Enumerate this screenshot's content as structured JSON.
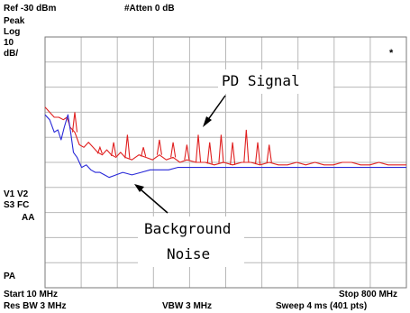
{
  "analyzer": {
    "ref_level": "Ref -30 dBm",
    "atten": "#Atten 0 dB",
    "detector": "Peak",
    "scale_type": "Log",
    "scale_value": "10",
    "scale_unit": "dB/",
    "marker_glyph": "*",
    "left_labels": [
      "V1  V2",
      "S3  FC",
      "AA",
      "PA"
    ],
    "start": "Start 10 MHz",
    "stop": "Stop 800 MHz",
    "res_bw": "Res BW 3 MHz",
    "vbw": "VBW 3 MHz",
    "sweep": "Sweep 4 ms (401 pts)"
  },
  "annotations": {
    "signal_label": "PD Signal",
    "noise_label_line1": "Background",
    "noise_label_line2": "Noise"
  },
  "colors": {
    "pd_signal": "#e02020",
    "background_noise": "#2828d8",
    "grid": "#b8b8b8"
  },
  "chart_data": {
    "type": "line",
    "xlim": [
      10,
      800
    ],
    "ylim": [
      -130,
      -30
    ],
    "ylim_note_unit": "dBm",
    "series": [
      {
        "key": "pd_signal",
        "x": [
          10,
          20,
          30,
          40,
          50,
          58,
          65,
          75,
          85,
          95,
          105,
          115,
          125,
          135,
          145,
          155,
          165,
          175,
          185,
          200,
          215,
          230,
          245,
          260,
          275,
          290,
          305,
          320,
          340,
          360,
          380,
          400,
          420,
          440,
          460,
          480,
          500,
          520,
          540,
          560,
          580,
          600,
          620,
          640,
          660,
          680,
          700,
          720,
          740,
          760,
          780,
          800
        ],
        "y": [
          -58,
          -60,
          -62,
          -62,
          -63,
          -62,
          -66,
          -68,
          -73,
          -74,
          -72,
          -74,
          -76,
          -77,
          -75,
          -77,
          -78,
          -76,
          -78,
          -79,
          -77,
          -78,
          -79,
          -77,
          -79,
          -78,
          -80,
          -79,
          -80,
          -80,
          -81,
          -80,
          -81,
          -80,
          -80,
          -81,
          -80,
          -81,
          -81,
          -80,
          -81,
          -80,
          -81,
          -81,
          -80,
          -80,
          -81,
          -81,
          -80,
          -81,
          -81,
          -81
        ]
      },
      {
        "key": "background_noise",
        "x": [
          10,
          20,
          30,
          38,
          45,
          52,
          60,
          66,
          72,
          80,
          90,
          100,
          110,
          120,
          130,
          140,
          150,
          165,
          180,
          200,
          220,
          240,
          260,
          280,
          300,
          340,
          380,
          420,
          460,
          500,
          540,
          580,
          620,
          660,
          700,
          740,
          780,
          800
        ],
        "y": [
          -61,
          -63,
          -68,
          -67,
          -71,
          -66,
          -61,
          -68,
          -76,
          -78,
          -82,
          -81,
          -83,
          -84,
          -84,
          -85,
          -86,
          -85,
          -84,
          -85,
          -84,
          -83,
          -83,
          -83,
          -82,
          -82,
          -82,
          -82,
          -82,
          -82,
          -82,
          -82,
          -82,
          -82,
          -82,
          -82,
          -82,
          -82
        ]
      }
    ],
    "pd_spikes": [
      {
        "x": 75,
        "y": -60
      },
      {
        "x": 130,
        "y": -74
      },
      {
        "x": 160,
        "y": -72
      },
      {
        "x": 190,
        "y": -69
      },
      {
        "x": 225,
        "y": -74
      },
      {
        "x": 260,
        "y": -71
      },
      {
        "x": 290,
        "y": -72
      },
      {
        "x": 320,
        "y": -73
      },
      {
        "x": 345,
        "y": -69
      },
      {
        "x": 370,
        "y": -72
      },
      {
        "x": 395,
        "y": -69
      },
      {
        "x": 420,
        "y": -72
      },
      {
        "x": 450,
        "y": -67
      },
      {
        "x": 475,
        "y": -72
      },
      {
        "x": 500,
        "y": -73
      }
    ],
    "grid": true
  }
}
